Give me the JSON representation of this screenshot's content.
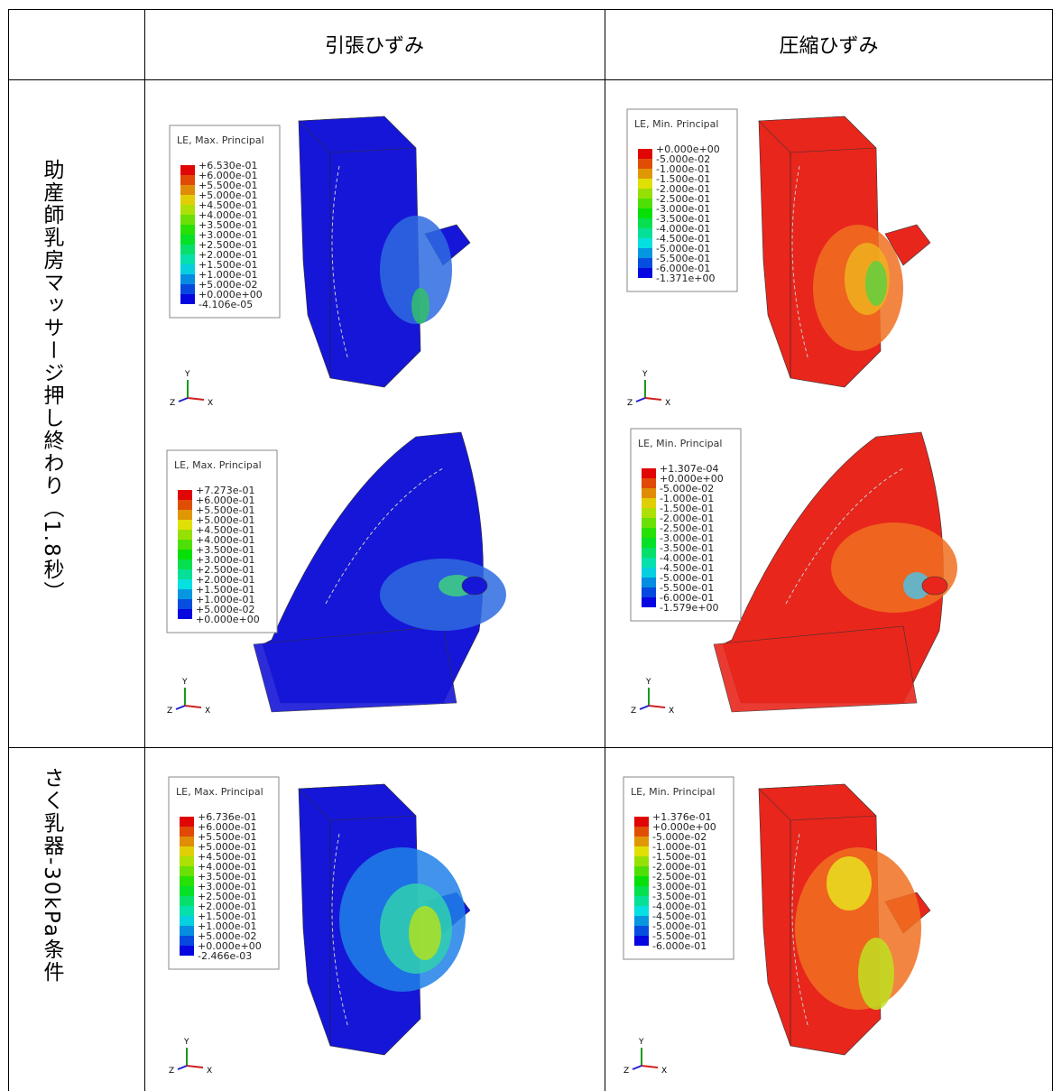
{
  "table": {
    "header": {
      "col1": "引張ひずみ",
      "col2": "圧縮ひずみ"
    },
    "triad": {
      "y": "Y",
      "z": "Z",
      "x": "X"
    },
    "rows": [
      {
        "label": "助産師乳房マッサージ押し終わり（1.8秒）",
        "cells": [
          [
            {
              "legend_title": "LE, Max. Principal",
              "legend_labels": [
                "+6.530e-01",
                "+6.000e-01",
                "+5.500e-01",
                "+5.000e-01",
                "+4.500e-01",
                "+4.000e-01",
                "+3.500e-01",
                "+3.000e-01",
                "+2.500e-01",
                "+2.000e-01",
                "+1.500e-01",
                "+1.000e-01",
                "+5.000e-02",
                "+0.000e+00",
                "-4.106e-05"
              ]
            },
            {
              "legend_title": "LE, Max. Principal",
              "legend_labels": [
                "+7.273e-01",
                "+6.000e-01",
                "+5.500e-01",
                "+5.000e-01",
                "+4.500e-01",
                "+4.000e-01",
                "+3.500e-01",
                "+3.000e-01",
                "+2.500e-01",
                "+2.000e-01",
                "+1.500e-01",
                "+1.000e-01",
                "+5.000e-02",
                "+0.000e+00"
              ]
            }
          ],
          [
            {
              "legend_title": "LE, Min. Principal",
              "legend_labels": [
                "+0.000e+00",
                "-5.000e-02",
                "-1.000e-01",
                "-1.500e-01",
                "-2.000e-01",
                "-2.500e-01",
                "-3.000e-01",
                "-3.500e-01",
                "-4.000e-01",
                "-4.500e-01",
                "-5.000e-01",
                "-5.500e-01",
                "-6.000e-01",
                "-1.371e+00"
              ]
            },
            {
              "legend_title": "LE, Min. Principal",
              "legend_labels": [
                "+1.307e-04",
                "+0.000e+00",
                "-5.000e-02",
                "-1.000e-01",
                "-1.500e-01",
                "-2.000e-01",
                "-2.500e-01",
                "-3.000e-01",
                "-3.500e-01",
                "-4.000e-01",
                "-4.500e-01",
                "-5.000e-01",
                "-5.500e-01",
                "-6.000e-01",
                "-1.579e+00"
              ]
            }
          ]
        ]
      },
      {
        "label": "さく乳器-30kPa条件",
        "cells": [
          [
            {
              "legend_title": "LE, Max. Principal",
              "legend_labels": [
                "+6.736e-01",
                "+6.000e-01",
                "+5.500e-01",
                "+5.000e-01",
                "+4.500e-01",
                "+4.000e-01",
                "+3.500e-01",
                "+3.000e-01",
                "+2.500e-01",
                "+2.000e-01",
                "+1.500e-01",
                "+1.000e-01",
                "+5.000e-02",
                "+0.000e+00",
                "-2.466e-03"
              ]
            }
          ],
          [
            {
              "legend_title": "LE, Min. Principal",
              "legend_labels": [
                "+1.376e-01",
                "+0.000e+00",
                "-5.000e-02",
                "-1.000e-01",
                "-1.500e-01",
                "-2.000e-01",
                "-2.500e-01",
                "-3.000e-01",
                "-3.500e-01",
                "-4.000e-01",
                "-4.500e-01",
                "-5.000e-01",
                "-5.500e-01",
                "-6.000e-01"
              ]
            }
          ]
        ]
      }
    ]
  }
}
